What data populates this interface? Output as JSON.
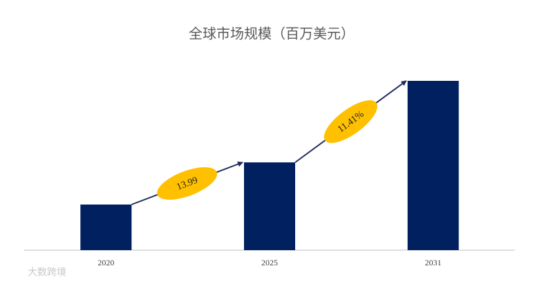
{
  "chart_data": {
    "type": "bar",
    "title": "全球市场规模（百万美元）",
    "categories": [
      "2020",
      "2025",
      "2031"
    ],
    "values": [
      66,
      127,
      245
    ],
    "color": "#002060",
    "ylim": [
      0,
      250
    ],
    "annotations": [
      "13.99",
      "11.41%"
    ],
    "annotation_color": "#ffc000",
    "arrow_color": "#1f2d5c",
    "watermark": "大数跨境"
  }
}
